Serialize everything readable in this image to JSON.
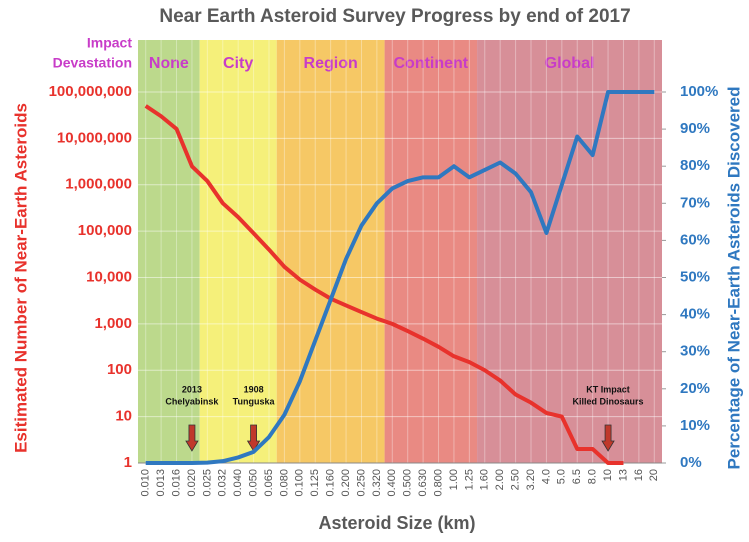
{
  "chart_data": {
    "type": "line",
    "title": "Near Earth Asteroid Survey Progress by end of 2017",
    "x_label": "Asteroid Size (km)",
    "y_label": "Esitimated Number of Near-Earth Asteroids",
    "y2_label": "Percentage of Near-Earth Asteroids Discovered",
    "categories": [
      "0.010",
      "0.013",
      "0.016",
      "0.020",
      "0.025",
      "0.032",
      "0.040",
      "0.050",
      "0.065",
      "0.080",
      "0.100",
      "0.125",
      "0.160",
      "0.200",
      "0.250",
      "0.320",
      "0.400",
      "0.500",
      "0.630",
      "0.800",
      "1.00",
      "1.25",
      "1.60",
      "2.00",
      "2.50",
      "3.20",
      "4.0",
      "5.0",
      "6.5",
      "8.0",
      "10",
      "13",
      "16",
      "20"
    ],
    "series": [
      {
        "color": "#e8322c",
        "values": [
          50000000,
          30000000,
          16000000,
          2500000,
          1200000,
          400000,
          200000,
          90000,
          40000,
          17000,
          9000,
          5500,
          3500,
          2500,
          1800,
          1300,
          1000,
          700,
          480,
          320,
          200,
          150,
          100,
          60,
          30,
          20,
          12,
          10,
          2,
          2,
          1,
          1,
          null,
          null
        ]
      },
      {
        "color": "#2f78c0",
        "axis": "y2",
        "values": [
          0,
          0,
          0,
          0,
          0.1,
          0.5,
          1.5,
          3,
          7,
          13,
          22,
          33,
          44,
          55,
          64,
          70,
          74,
          76,
          77,
          77,
          80,
          77,
          79,
          81,
          78,
          73,
          62,
          75,
          88,
          83,
          100,
          100,
          100,
          100
        ]
      }
    ],
    "log_y": true,
    "ylim": [
      1,
      100000000
    ],
    "yticks": [
      1,
      10,
      100,
      {
        "value": 1000,
        "label": "1,000"
      },
      {
        "value": 10000,
        "label": "10,000"
      },
      {
        "value": 100000,
        "label": "100,000"
      },
      {
        "value": 1000000,
        "label": "1,000,000"
      },
      {
        "value": 10000000,
        "label": "10,000,000"
      },
      {
        "value": 100000000,
        "label": "100,000,000"
      }
    ],
    "y2lim": [
      0,
      100
    ],
    "y2ticks": [
      {
        "value": 0,
        "label": "0%"
      },
      {
        "value": 10,
        "label": "10%"
      },
      {
        "value": 20,
        "label": "20%"
      },
      {
        "value": 30,
        "label": "30%"
      },
      {
        "value": 40,
        "label": "40%"
      },
      {
        "value": 50,
        "label": "50%"
      },
      {
        "value": 60,
        "label": "60%"
      },
      {
        "value": 70,
        "label": "70%"
      },
      {
        "value": 80,
        "label": "80%"
      },
      {
        "value": 90,
        "label": "90%"
      },
      {
        "value": 100,
        "label": "100%"
      }
    ],
    "grid": true,
    "band_heading": [
      "Impact",
      "Devastation"
    ],
    "bands": [
      {
        "label": "None",
        "color": "#bcd98c",
        "from": "0.010",
        "to": "0.020"
      },
      {
        "label": "City",
        "color": "#f5f07a",
        "from": "0.025",
        "to": "0.065"
      },
      {
        "label": "Region",
        "color": "#f6c865",
        "from": "0.080",
        "to": "0.320"
      },
      {
        "label": "Continent",
        "color": "#e98a83",
        "from": "0.400",
        "to": "1.25"
      },
      {
        "label": "Global",
        "color": "#d78f98",
        "from": "1.60",
        "to": "20"
      }
    ],
    "annotations": [
      {
        "lines": [
          "2013",
          "Chelyabinsk"
        ],
        "x": "0.020"
      },
      {
        "lines": [
          "1908",
          "Tunguska"
        ],
        "x": "0.050"
      },
      {
        "lines": [
          "KT Impact",
          "Killed Dinosaurs"
        ],
        "x": "10"
      }
    ]
  }
}
